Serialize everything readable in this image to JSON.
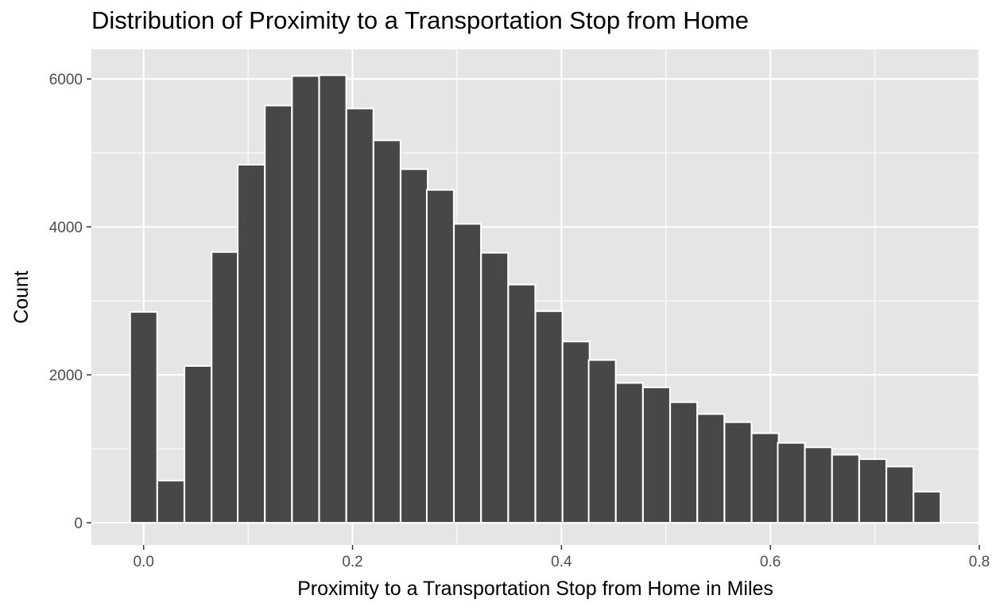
{
  "chart_data": {
    "type": "bar",
    "title": "Distribution of Proximity to a Transportation Stop from Home",
    "xlabel": "Proximity to a Transportation Stop from Home in Miles",
    "ylabel": "Count",
    "xlim": [
      -0.05,
      0.8
    ],
    "ylim": [
      -300,
      6400
    ],
    "bin_width": 0.02585,
    "x_ticks": [
      0.0,
      0.2,
      0.4,
      0.6,
      0.8
    ],
    "x_tick_labels": [
      "0.0",
      "0.2",
      "0.4",
      "0.6",
      "0.8"
    ],
    "y_ticks": [
      0,
      2000,
      4000,
      6000
    ],
    "y_tick_labels": [
      "0",
      "2000",
      "4000",
      "6000"
    ],
    "grid": true,
    "bin_centers": [
      0.0,
      0.026,
      0.052,
      0.078,
      0.103,
      0.129,
      0.155,
      0.181,
      0.207,
      0.233,
      0.259,
      0.284,
      0.31,
      0.336,
      0.362,
      0.388,
      0.414,
      0.439,
      0.465,
      0.491,
      0.517,
      0.543,
      0.569,
      0.595,
      0.62,
      0.646,
      0.672,
      0.698,
      0.724,
      0.75
    ],
    "values": [
      2850,
      570,
      2120,
      3660,
      4840,
      5640,
      6040,
      6050,
      5600,
      5170,
      4780,
      4500,
      4040,
      3650,
      3220,
      2860,
      2450,
      2200,
      1890,
      1830,
      1630,
      1470,
      1360,
      1210,
      1080,
      1020,
      920,
      860,
      760,
      420
    ],
    "colors": {
      "bar_fill": "#474747",
      "bar_outline": "#ffffff",
      "panel": "#e5e5e5",
      "grid": "#ffffff"
    }
  }
}
